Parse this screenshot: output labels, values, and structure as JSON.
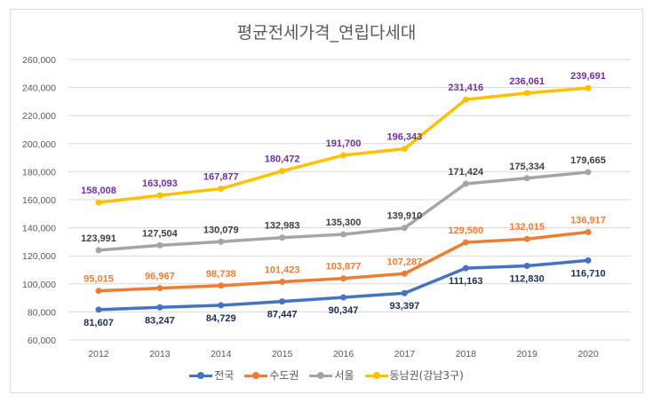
{
  "chart_data": {
    "type": "line",
    "title": "평균전세가격_연립다세대",
    "categories": [
      "2012",
      "2013",
      "2014",
      "2015",
      "2016",
      "2017",
      "2018",
      "2019",
      "2020"
    ],
    "ylim": [
      60000,
      260000
    ],
    "yticks": [
      "60,000",
      "80,000",
      "100,000",
      "120,000",
      "140,000",
      "160,000",
      "180,000",
      "200,000",
      "220,000",
      "240,000",
      "260,000"
    ],
    "grid": true,
    "legend_position": "bottom",
    "series": [
      {
        "name": "전국",
        "color": "#4472c4",
        "label_color": "#1f2d50",
        "label_pos": "below",
        "values": [
          81607,
          83247,
          84729,
          87447,
          90347,
          93397,
          111163,
          112830,
          116710
        ],
        "labels": [
          "81,607",
          "83,247",
          "84,729",
          "87,447",
          "90,347",
          "93,397",
          "111,163",
          "112,830",
          "116,710"
        ]
      },
      {
        "name": "수도권",
        "color": "#ed7d31",
        "label_color": "#ed7d31",
        "label_pos": "above",
        "values": [
          95015,
          96967,
          98738,
          101423,
          103877,
          107287,
          129580,
          132015,
          136917
        ],
        "labels": [
          "95,015",
          "96,967",
          "98,738",
          "101,423",
          "103,877",
          "107,287",
          "129,580",
          "132,015",
          "136,917"
        ]
      },
      {
        "name": "서울",
        "color": "#a5a5a5",
        "label_color": "#404040",
        "label_pos": "above",
        "values": [
          123991,
          127504,
          130079,
          132983,
          135300,
          139910,
          171424,
          175334,
          179665
        ],
        "labels": [
          "123,991",
          "127,504",
          "130,079",
          "132,983",
          "135,300",
          "139,910",
          "171,424",
          "175,334",
          "179,665"
        ]
      },
      {
        "name": "동남권(강남3구)",
        "color": "#ffc000",
        "label_color": "#7030a0",
        "label_pos": "above",
        "values": [
          158008,
          163093,
          167877,
          180472,
          191700,
          196343,
          231416,
          236061,
          239691
        ],
        "labels": [
          "158,008",
          "163,093",
          "167,877",
          "180,472",
          "191,700",
          "196,343",
          "231,416",
          "236,061",
          "239,691"
        ]
      }
    ]
  }
}
